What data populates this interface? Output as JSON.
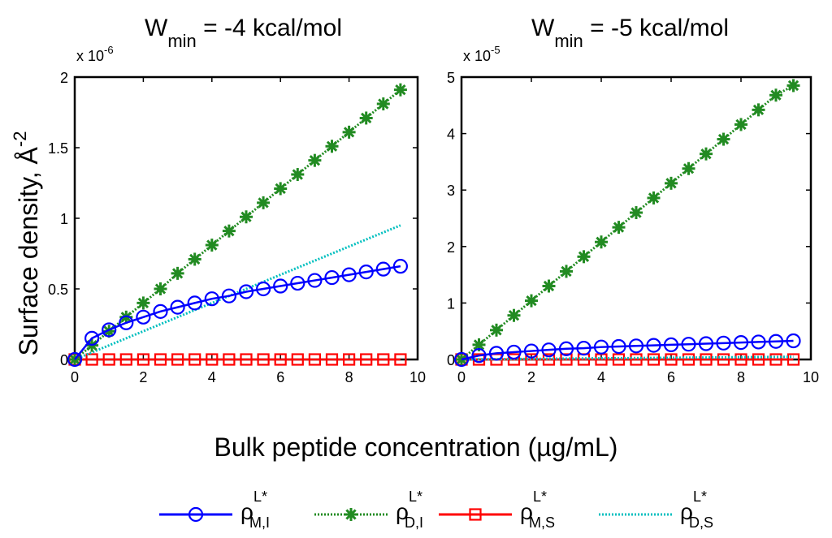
{
  "figure": {
    "ylabel": "Surface density, Å",
    "ylabel_exp": "-2",
    "xlabel": "Bulk peptide concentration (µg/mL)"
  },
  "legend": [
    {
      "key": "mi",
      "base": "ρ",
      "sup": "L*",
      "sub": "M,I",
      "color": "#0000ff",
      "marker": "circle",
      "line": "solid"
    },
    {
      "key": "di",
      "base": "ρ",
      "sup": "L*",
      "sub": "D,I",
      "color": "#228b22",
      "marker": "asterisk",
      "line": "dotted"
    },
    {
      "key": "ms",
      "base": "ρ",
      "sup": "L*",
      "sub": "M,S",
      "color": "#ff0000",
      "marker": "square",
      "line": "solid"
    },
    {
      "key": "ds",
      "base": "ρ",
      "sup": "L*",
      "sub": "D,S",
      "color": "#00bfbf",
      "marker": "none",
      "line": "dotted"
    }
  ],
  "chart_data": [
    {
      "type": "line",
      "title_main": "W",
      "title_sub": "min",
      "title_rest": " = -4 kcal/mol",
      "scale_prefix": "x 10",
      "scale_exp": "-6",
      "xlim": [
        0,
        10
      ],
      "ylim": [
        0,
        2
      ],
      "xticks": [
        0,
        2,
        4,
        6,
        8,
        10
      ],
      "yticks": [
        0,
        0.5,
        1,
        1.5,
        2
      ],
      "ytick_labels": [
        "0",
        "0.5",
        "1",
        "1.5",
        "2"
      ],
      "x": [
        0,
        0.5,
        1,
        1.5,
        2,
        2.5,
        3,
        3.5,
        4,
        4.5,
        5,
        5.5,
        6,
        6.5,
        7,
        7.5,
        8,
        8.5,
        9,
        9.5
      ],
      "series": [
        {
          "key": "mi",
          "values": [
            0,
            0.15,
            0.21,
            0.26,
            0.3,
            0.34,
            0.37,
            0.4,
            0.43,
            0.45,
            0.48,
            0.5,
            0.52,
            0.54,
            0.56,
            0.58,
            0.6,
            0.62,
            0.64,
            0.66
          ]
        },
        {
          "key": "di",
          "values": [
            0,
            0.1,
            0.2,
            0.3,
            0.4,
            0.5,
            0.61,
            0.71,
            0.81,
            0.91,
            1.01,
            1.11,
            1.21,
            1.31,
            1.41,
            1.51,
            1.61,
            1.71,
            1.81,
            1.91
          ]
        },
        {
          "key": "ms",
          "values": [
            0,
            0,
            0,
            0,
            0,
            0,
            0,
            0,
            0,
            0,
            0,
            0,
            0,
            0,
            0,
            0,
            0,
            0,
            0,
            0
          ]
        },
        {
          "key": "ds",
          "values": [
            0,
            0.05,
            0.1,
            0.15,
            0.2,
            0.25,
            0.3,
            0.35,
            0.4,
            0.45,
            0.5,
            0.55,
            0.6,
            0.65,
            0.7,
            0.75,
            0.8,
            0.85,
            0.9,
            0.95
          ]
        }
      ]
    },
    {
      "type": "line",
      "title_main": "W",
      "title_sub": "min",
      "title_rest": " = -5 kcal/mol",
      "scale_prefix": "x 10",
      "scale_exp": "-5",
      "xlim": [
        0,
        10
      ],
      "ylim": [
        0,
        5
      ],
      "xticks": [
        0,
        2,
        4,
        6,
        8,
        10
      ],
      "yticks": [
        0,
        1,
        2,
        3,
        4,
        5
      ],
      "ytick_labels": [
        "0",
        "1",
        "2",
        "3",
        "4",
        "5"
      ],
      "x": [
        0,
        0.5,
        1,
        1.5,
        2,
        2.5,
        3,
        3.5,
        4,
        4.5,
        5,
        5.5,
        6,
        6.5,
        7,
        7.5,
        8,
        8.5,
        9,
        9.5
      ],
      "series": [
        {
          "key": "mi",
          "values": [
            0,
            0.07,
            0.11,
            0.13,
            0.15,
            0.17,
            0.19,
            0.2,
            0.22,
            0.23,
            0.24,
            0.25,
            0.26,
            0.27,
            0.28,
            0.29,
            0.3,
            0.31,
            0.32,
            0.33
          ]
        },
        {
          "key": "di",
          "values": [
            0,
            0.26,
            0.52,
            0.78,
            1.04,
            1.3,
            1.56,
            1.82,
            2.08,
            2.34,
            2.6,
            2.86,
            3.12,
            3.38,
            3.64,
            3.9,
            4.16,
            4.42,
            4.68,
            4.85
          ]
        },
        {
          "key": "ms",
          "values": [
            0,
            0,
            0,
            0,
            0,
            0,
            0,
            0,
            0,
            0,
            0,
            0,
            0,
            0,
            0,
            0,
            0,
            0,
            0,
            0
          ]
        },
        {
          "key": "ds",
          "values": [
            0,
            0.003,
            0.005,
            0.008,
            0.01,
            0.013,
            0.015,
            0.018,
            0.02,
            0.023,
            0.025,
            0.028,
            0.03,
            0.033,
            0.035,
            0.038,
            0.04,
            0.043,
            0.045,
            0.048
          ]
        }
      ]
    }
  ]
}
